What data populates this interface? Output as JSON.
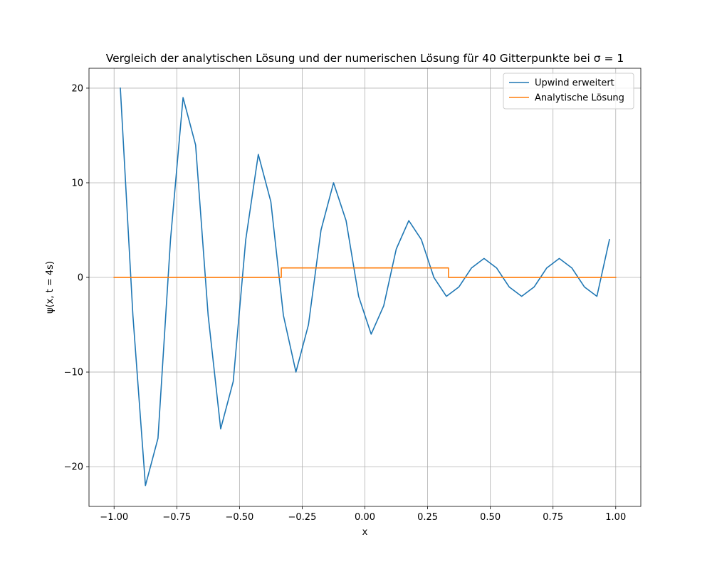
{
  "chart_data": {
    "type": "line",
    "title": "Vergleich der analytischen Lösung und der numerischen Lösung für 40 Gitterpunkte bei σ = 1",
    "xlabel": "x",
    "ylabel": "ψ(x, t = 4s)",
    "xlim": [
      -1.1,
      1.1
    ],
    "ylim": [
      -24.2,
      22.1
    ],
    "xticks": [
      -1.0,
      -0.75,
      -0.5,
      -0.25,
      0.0,
      0.25,
      0.5,
      0.75,
      1.0
    ],
    "xtick_labels": [
      "−1.00",
      "−0.75",
      "−0.50",
      "−0.25",
      "0.00",
      "0.25",
      "0.50",
      "0.75",
      "1.00"
    ],
    "yticks": [
      -20,
      -10,
      0,
      10,
      20
    ],
    "ytick_labels": [
      "−20",
      "−10",
      "0",
      "10",
      "20"
    ],
    "grid": true,
    "legend_position": "top-right",
    "series": [
      {
        "name": "Upwind erweitert",
        "color": "#1f77b4",
        "x": [
          -0.975,
          -0.925,
          -0.875,
          -0.825,
          -0.775,
          -0.725,
          -0.675,
          -0.625,
          -0.575,
          -0.525,
          -0.475,
          -0.425,
          -0.375,
          -0.325,
          -0.275,
          -0.225,
          -0.175,
          -0.125,
          -0.075,
          -0.025,
          0.025,
          0.075,
          0.125,
          0.175,
          0.225,
          0.275,
          0.325,
          0.375,
          0.425,
          0.475,
          0.525,
          0.575,
          0.625,
          0.675,
          0.725,
          0.775,
          0.825,
          0.875,
          0.925,
          0.975
        ],
        "y": [
          20,
          -4,
          -22,
          -17,
          4,
          19,
          14,
          -4,
          -16,
          -11,
          4,
          13,
          8,
          -4,
          -10,
          -5,
          5,
          10,
          6,
          -2,
          -6,
          -3,
          3,
          6,
          4,
          0,
          -2,
          -1,
          1,
          2,
          1,
          -1,
          -2,
          -1,
          1,
          2,
          1,
          -1,
          -2,
          4
        ]
      },
      {
        "name": "Analytische Lösung",
        "color": "#ff7f0e",
        "x": [
          -1.0,
          -0.3333,
          -0.3333,
          0.3333,
          0.3333,
          1.0
        ],
        "y": [
          0,
          0,
          1,
          1,
          0,
          0
        ]
      }
    ]
  }
}
